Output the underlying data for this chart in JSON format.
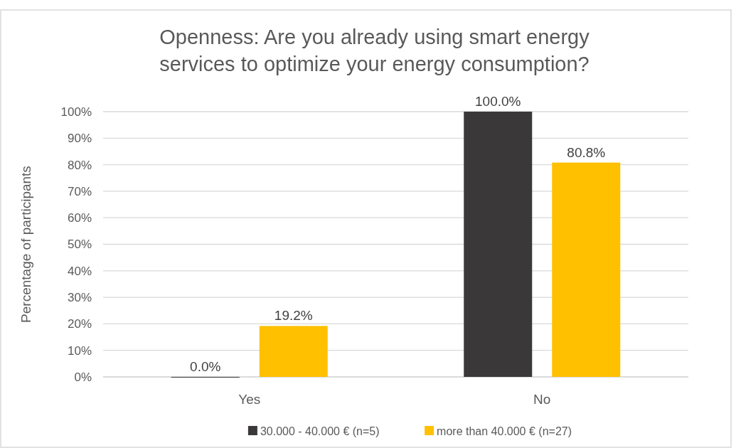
{
  "chart_data": {
    "type": "bar",
    "title": "Openness: Are you already using smart energy services to optimize your energy consumption?",
    "ylabel": "Percentage of participants",
    "categories": [
      "Yes",
      "No"
    ],
    "series": [
      {
        "name": "30.000 - 40.000 € (n=5)",
        "color": "#3a3838",
        "values": [
          0,
          100
        ],
        "value_labels": [
          "0.0%",
          "100.0%"
        ]
      },
      {
        "name": "more than 40.000 € (n=27)",
        "color": "#ffc000",
        "values": [
          19.2,
          80.8
        ],
        "value_labels": [
          "19.2%",
          "80.8%"
        ]
      }
    ],
    "ylim": [
      0,
      100
    ],
    "yticks": [
      {
        "value": 0,
        "label": "0%"
      },
      {
        "value": 10,
        "label": "10%"
      },
      {
        "value": 20,
        "label": "20%"
      },
      {
        "value": 30,
        "label": "30%"
      },
      {
        "value": 40,
        "label": "40%"
      },
      {
        "value": 50,
        "label": "50%"
      },
      {
        "value": 60,
        "label": "60%"
      },
      {
        "value": 70,
        "label": "70%"
      },
      {
        "value": 80,
        "label": "80%"
      },
      {
        "value": 90,
        "label": "90%"
      },
      {
        "value": 100,
        "label": "100%"
      }
    ],
    "grid": "y",
    "legend": "bottom"
  }
}
